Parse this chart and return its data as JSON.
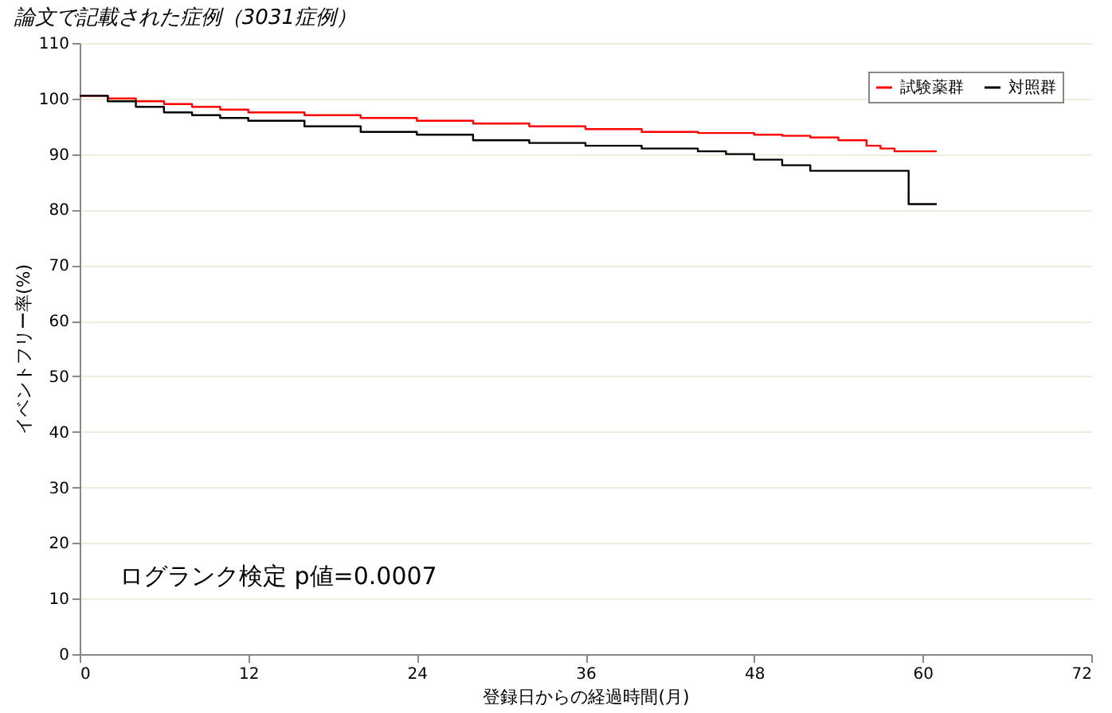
{
  "chart_data": {
    "type": "step",
    "title": "論文で記載された症例（3031症例）",
    "xlabel": "登録日からの経過時間(月)",
    "ylabel": "イベントフリー率(%)",
    "annotations": [
      "ログランク検定 p値=0.0007"
    ],
    "xlim": [
      0,
      72
    ],
    "xticks": [
      0,
      12,
      24,
      36,
      48,
      60,
      72
    ],
    "ylim": [
      0,
      110
    ],
    "yticks": [
      0,
      10,
      20,
      30,
      40,
      50,
      60,
      70,
      80,
      90,
      100,
      110
    ],
    "grid": "y",
    "legend": "top right",
    "line_style": "solid",
    "marker": "none",
    "series": [
      {
        "name": "試験薬群",
        "color": "#ff0000",
        "x": [
          0,
          2,
          4,
          6,
          8,
          10,
          12,
          16,
          20,
          24,
          28,
          32,
          36,
          40,
          44,
          48,
          50,
          52,
          54,
          56,
          57,
          58,
          59,
          61
        ],
        "values": [
          100.5,
          100,
          99.5,
          99,
          98.5,
          98,
          97.5,
          97,
          96.5,
          96,
          95.5,
          95,
          94.5,
          94,
          93.8,
          93.5,
          93.3,
          93,
          92.5,
          91.5,
          91,
          90.5,
          90.5,
          90.5
        ]
      },
      {
        "name": "対照群",
        "color": "#000000",
        "x": [
          0,
          2,
          4,
          6,
          8,
          10,
          12,
          16,
          20,
          24,
          28,
          32,
          36,
          40,
          44,
          46,
          48,
          50,
          52,
          55,
          58.5,
          59,
          61
        ],
        "values": [
          100.5,
          99.5,
          98.5,
          97.5,
          97,
          96.5,
          96,
          95,
          94,
          93.5,
          92.5,
          92,
          91.5,
          91,
          90.5,
          90,
          89,
          88,
          87,
          87,
          87,
          81,
          81
        ]
      }
    ]
  }
}
